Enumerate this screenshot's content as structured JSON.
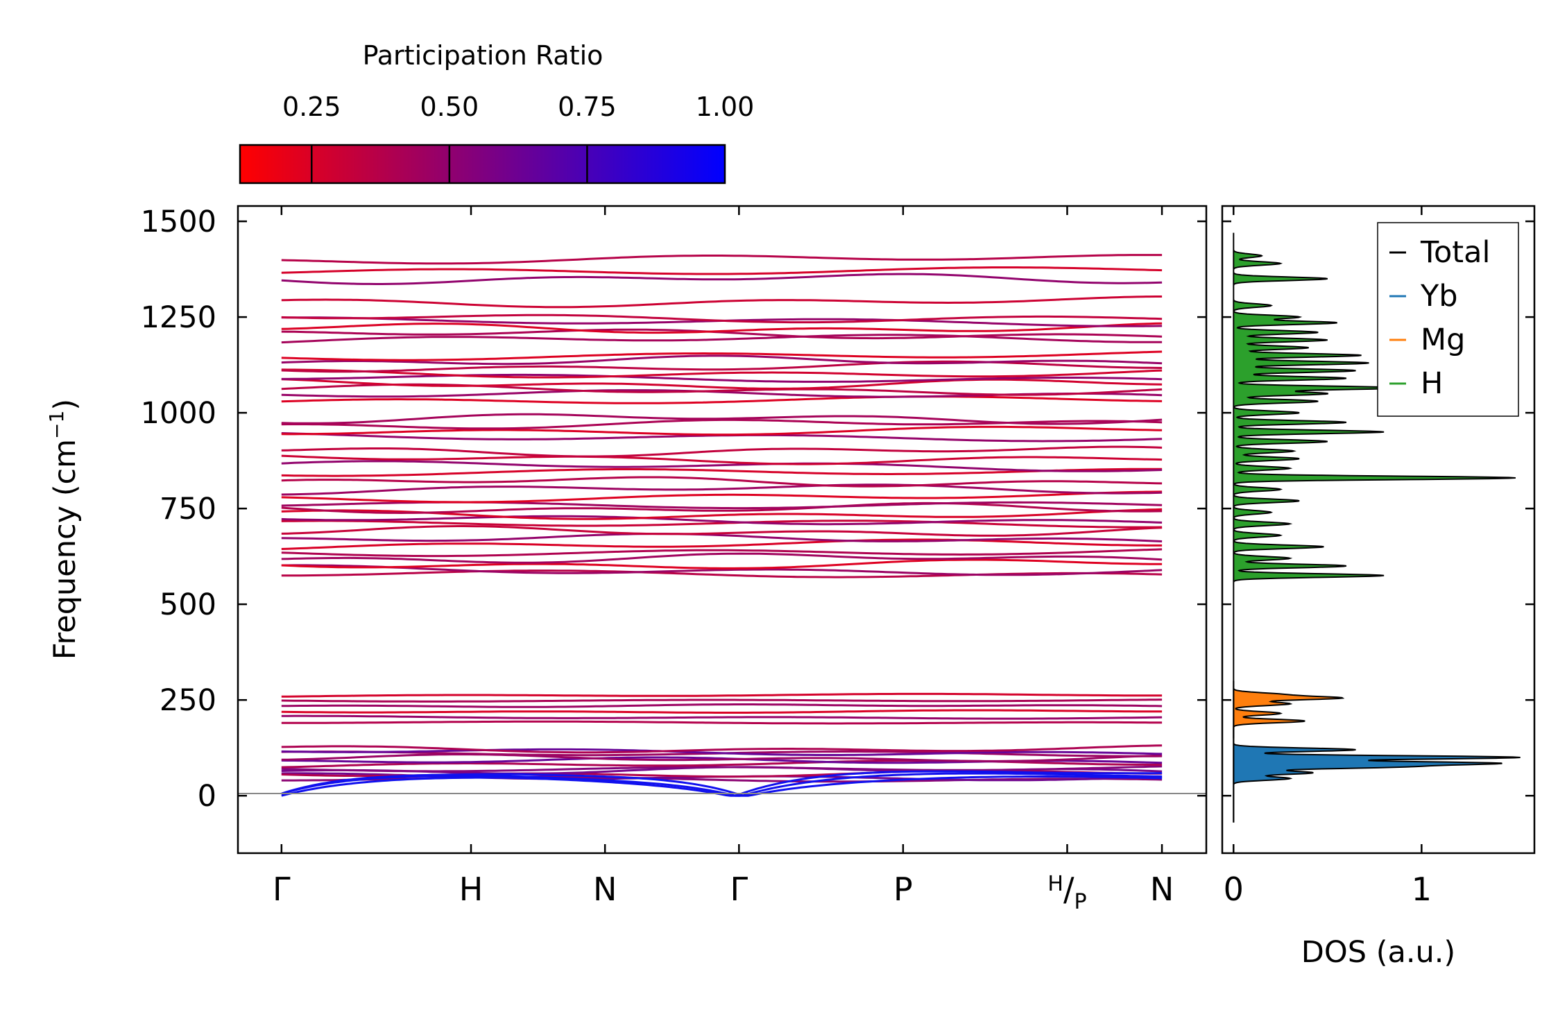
{
  "colorbar": {
    "title": "Participation Ratio",
    "ticks": [
      "0.25",
      "0.50",
      "0.75",
      "1.00"
    ],
    "tick_values": [
      0.25,
      0.5,
      0.75,
      1.0
    ],
    "range": [
      0.12,
      1.0
    ],
    "colors": {
      "low": "#ff0000",
      "high": "#0000ff"
    }
  },
  "chart_data": [
    {
      "type": "line",
      "name": "phonon-band-structure",
      "xlabel": "",
      "ylabel": "Frequency (cm⁻¹)",
      "ylabel_parts": {
        "main": "Frequency (cm",
        "sup": "−1",
        "close": ")"
      },
      "ylim": [
        -150,
        1540
      ],
      "yticks": [
        0,
        250,
        500,
        750,
        1000,
        1250,
        1500
      ],
      "ytick_labels": [
        "0",
        "250",
        "500",
        "750",
        "1000",
        "1250",
        "1500"
      ],
      "kpoints": [
        {
          "label": "Γ",
          "pos": 0.0
        },
        {
          "label": "H",
          "pos": 1.0
        },
        {
          "label": "N",
          "pos": 1.707
        },
        {
          "label": "Γ",
          "pos": 2.414
        },
        {
          "label": "P",
          "pos": 3.28
        },
        {
          "label": "H/P",
          "pos": 4.146,
          "sup": "H",
          "sub": "P"
        },
        {
          "label": "N",
          "pos": 4.646
        }
      ],
      "xlim": [
        -0.23,
        4.88
      ],
      "zero_line": 0,
      "bands": {
        "acoustic_color": "#1010ee",
        "acoustic": [
          {
            "start": 0,
            "mid": 45,
            "end": 0
          },
          {
            "start": 0,
            "mid": 55,
            "end": 0
          },
          {
            "start": 0,
            "mid": 65,
            "end": 0
          }
        ],
        "low_optic": [
          40,
          50,
          58,
          66,
          74,
          82,
          90,
          98,
          106,
          114,
          122
        ],
        "mid_optic": [
          190,
          205,
          220,
          235,
          250,
          262
        ],
        "high_optic": [
          575,
          590,
          605,
          620,
          640,
          655,
          670,
          690,
          705,
          720,
          735,
          750,
          765,
          780,
          800,
          820,
          840,
          860,
          880,
          900,
          940,
          955,
          970,
          985,
          1030,
          1045,
          1060,
          1075,
          1090,
          1105,
          1120,
          1135,
          1150,
          1190,
          1205,
          1220,
          1235,
          1250,
          1290,
          1350,
          1375,
          1400
        ]
      }
    },
    {
      "type": "line",
      "name": "phonon-dos",
      "xlabel": "DOS (a.u.)",
      "ylabel": "",
      "xlim": [
        -0.06,
        1.6
      ],
      "xticks": [
        0,
        1
      ],
      "xtick_labels": [
        "0",
        "1"
      ],
      "ylim": [
        -150,
        1540
      ],
      "legend": {
        "position": "top-right",
        "entries": [
          "Total",
          "Yb",
          "Mg",
          "H"
        ]
      },
      "series": [
        {
          "name": "Total",
          "color": "#000000"
        },
        {
          "name": "Yb",
          "color": "#1f77b4",
          "fill": true,
          "peaks": [
            [
              100,
              1.52
            ],
            [
              85,
              1.35
            ],
            [
              75,
              0.8
            ],
            [
              60,
              0.42
            ],
            [
              120,
              0.65
            ],
            [
              45,
              0.3
            ]
          ]
        },
        {
          "name": "Mg",
          "color": "#ff7f0e",
          "fill": true,
          "peaks": [
            [
              255,
              0.56
            ],
            [
              240,
              0.3
            ],
            [
              215,
              0.25
            ],
            [
              195,
              0.38
            ],
            [
              265,
              0.22
            ]
          ]
        },
        {
          "name": "H",
          "color": "#2ca02c",
          "fill": true,
          "peaks": [
            [
              575,
              0.8
            ],
            [
              600,
              0.6
            ],
            [
              620,
              0.3
            ],
            [
              650,
              0.48
            ],
            [
              680,
              0.25
            ],
            [
              710,
              0.3
            ],
            [
              740,
              0.2
            ],
            [
              770,
              0.35
            ],
            [
              800,
              0.25
            ],
            [
              830,
              1.5
            ],
            [
              855,
              0.3
            ],
            [
              880,
              0.35
            ],
            [
              900,
              0.32
            ],
            [
              925,
              0.5
            ],
            [
              950,
              0.8
            ],
            [
              975,
              0.6
            ],
            [
              1000,
              0.35
            ],
            [
              1030,
              0.45
            ],
            [
              1050,
              0.5
            ],
            [
              1065,
              0.9
            ],
            [
              1090,
              0.6
            ],
            [
              1110,
              0.65
            ],
            [
              1130,
              0.72
            ],
            [
              1150,
              0.68
            ],
            [
              1170,
              0.4
            ],
            [
              1190,
              0.5
            ],
            [
              1210,
              0.45
            ],
            [
              1235,
              0.55
            ],
            [
              1250,
              0.35
            ],
            [
              1280,
              0.2
            ],
            [
              1350,
              0.5
            ],
            [
              1390,
              0.25
            ],
            [
              1410,
              0.15
            ]
          ]
        }
      ]
    }
  ]
}
